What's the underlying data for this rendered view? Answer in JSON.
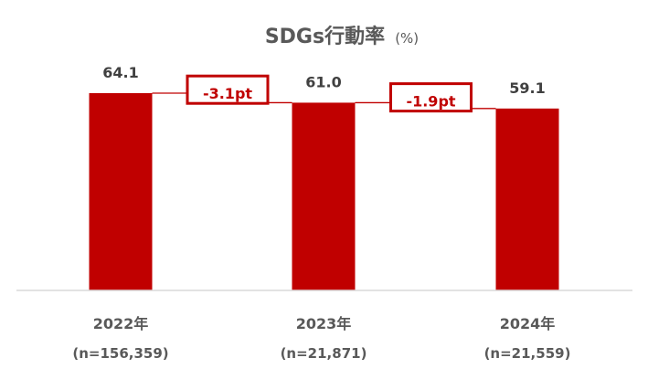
{
  "chart_data": {
    "type": "bar",
    "title": "SDGs行動率",
    "unit": "(%)",
    "categories": [
      "2022年",
      "2023年",
      "2024年"
    ],
    "sample_sizes": [
      "(n=156,359)",
      "(n=21,871)",
      "(n=21,559)"
    ],
    "values": [
      64.1,
      61.0,
      59.1
    ],
    "value_labels": [
      "64.1",
      "61.0",
      "59.1"
    ],
    "annotations": [
      "-3.1pt",
      "-1.9pt"
    ],
    "ylim": [
      0,
      80
    ],
    "grid": false,
    "bar_color": "#c00000",
    "text_color": "#595959"
  }
}
